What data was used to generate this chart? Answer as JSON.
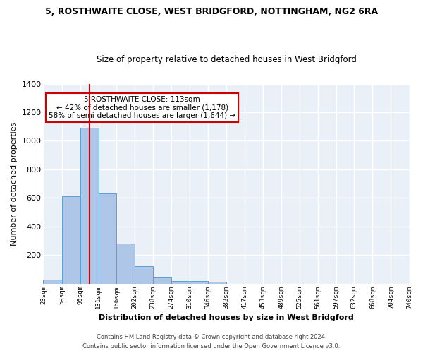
{
  "title": "5, ROSTHWAITE CLOSE, WEST BRIDGFORD, NOTTINGHAM, NG2 6RA",
  "subtitle": "Size of property relative to detached houses in West Bridgford",
  "xlabel": "Distribution of detached houses by size in West Bridgford",
  "ylabel": "Number of detached properties",
  "bar_color": "#aec6e8",
  "bar_edge_color": "#5a9fd4",
  "bg_color": "#eaf0f8",
  "grid_color": "#ffffff",
  "bins": [
    23,
    59,
    95,
    131,
    166,
    202,
    238,
    274,
    310,
    346,
    382,
    417,
    453,
    489,
    525,
    561,
    597,
    632,
    668,
    704,
    740
  ],
  "counts": [
    30,
    612,
    1090,
    630,
    280,
    120,
    45,
    20,
    20,
    12,
    0,
    0,
    0,
    0,
    0,
    0,
    0,
    0,
    0,
    0
  ],
  "tick_labels": [
    "23sqm",
    "59sqm",
    "95sqm",
    "131sqm",
    "166sqm",
    "202sqm",
    "238sqm",
    "274sqm",
    "310sqm",
    "346sqm",
    "382sqm",
    "417sqm",
    "453sqm",
    "489sqm",
    "525sqm",
    "561sqm",
    "597sqm",
    "632sqm",
    "668sqm",
    "704sqm",
    "740sqm"
  ],
  "property_size": 113,
  "annotation_text": "5 ROSTHWAITE CLOSE: 113sqm\n← 42% of detached houses are smaller (1,178)\n58% of semi-detached houses are larger (1,644) →",
  "annotation_box_color": "#ffffff",
  "annotation_border_color": "#cc0000",
  "red_line_color": "#cc0000",
  "footer_line1": "Contains HM Land Registry data © Crown copyright and database right 2024.",
  "footer_line2": "Contains public sector information licensed under the Open Government Licence v3.0.",
  "ylim": [
    0,
    1400
  ],
  "yticks": [
    0,
    200,
    400,
    600,
    800,
    1000,
    1200,
    1400
  ],
  "fig_width": 6.0,
  "fig_height": 5.0,
  "dpi": 100
}
